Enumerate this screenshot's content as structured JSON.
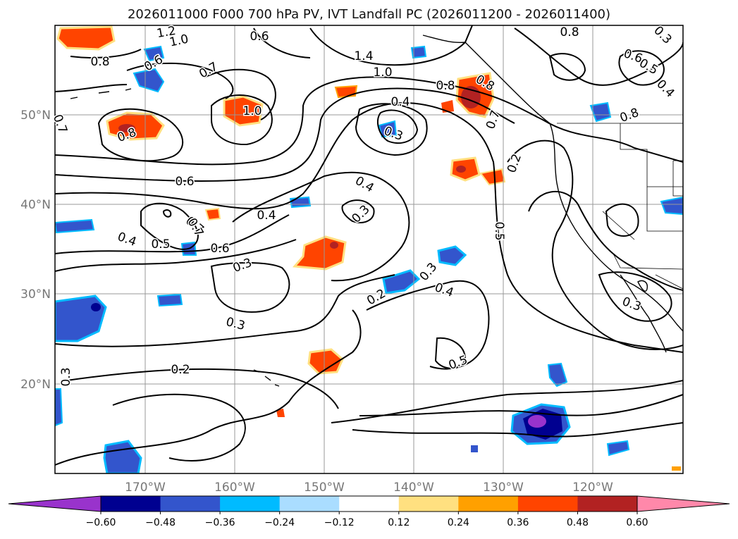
{
  "title": "2026011000 F000 700 hPa PV, IVT Landfall PC (2026011200 - 2026011400)",
  "map": {
    "lon_labels": [
      "170°W",
      "160°W",
      "150°W",
      "140°W",
      "130°W",
      "120°W"
    ],
    "lat_labels": [
      "50°N",
      "40°N",
      "30°N",
      "20°N"
    ],
    "contour_labels": [
      "1.2",
      "1.0",
      "0.8",
      "0.6",
      "0.6",
      "0.7",
      "0.7",
      "1.4",
      "1.0",
      "0.8",
      "0.8",
      "0.8",
      "0.6",
      "0.5",
      "0.4",
      "0.8",
      "0.7",
      "0.8",
      "1.0",
      "0.4",
      "0.3",
      "0.6",
      "0.7",
      "0.2",
      "0.4",
      "0.4",
      "0.3",
      "0.7",
      "0.6",
      "0.5",
      "0.4",
      "0.3",
      "0.2",
      "0.3",
      "0.4",
      "0.5",
      "0.3",
      "0.3",
      "0.5",
      "0.2",
      "0.3",
      "0.3"
    ]
  },
  "colorbar": {
    "tick_labels": [
      "−0.60",
      "−0.48",
      "−0.36",
      "−0.24",
      "−0.12",
      "0.12",
      "0.24",
      "0.36",
      "0.48",
      "0.60"
    ],
    "colors": [
      "#9933cc",
      "#000090",
      "#3355cc",
      "#00bbff",
      "#aaddff",
      "#ffffff",
      "#ffe080",
      "#ffa000",
      "#ff4400",
      "#b22222",
      "#ff88aa"
    ]
  }
}
